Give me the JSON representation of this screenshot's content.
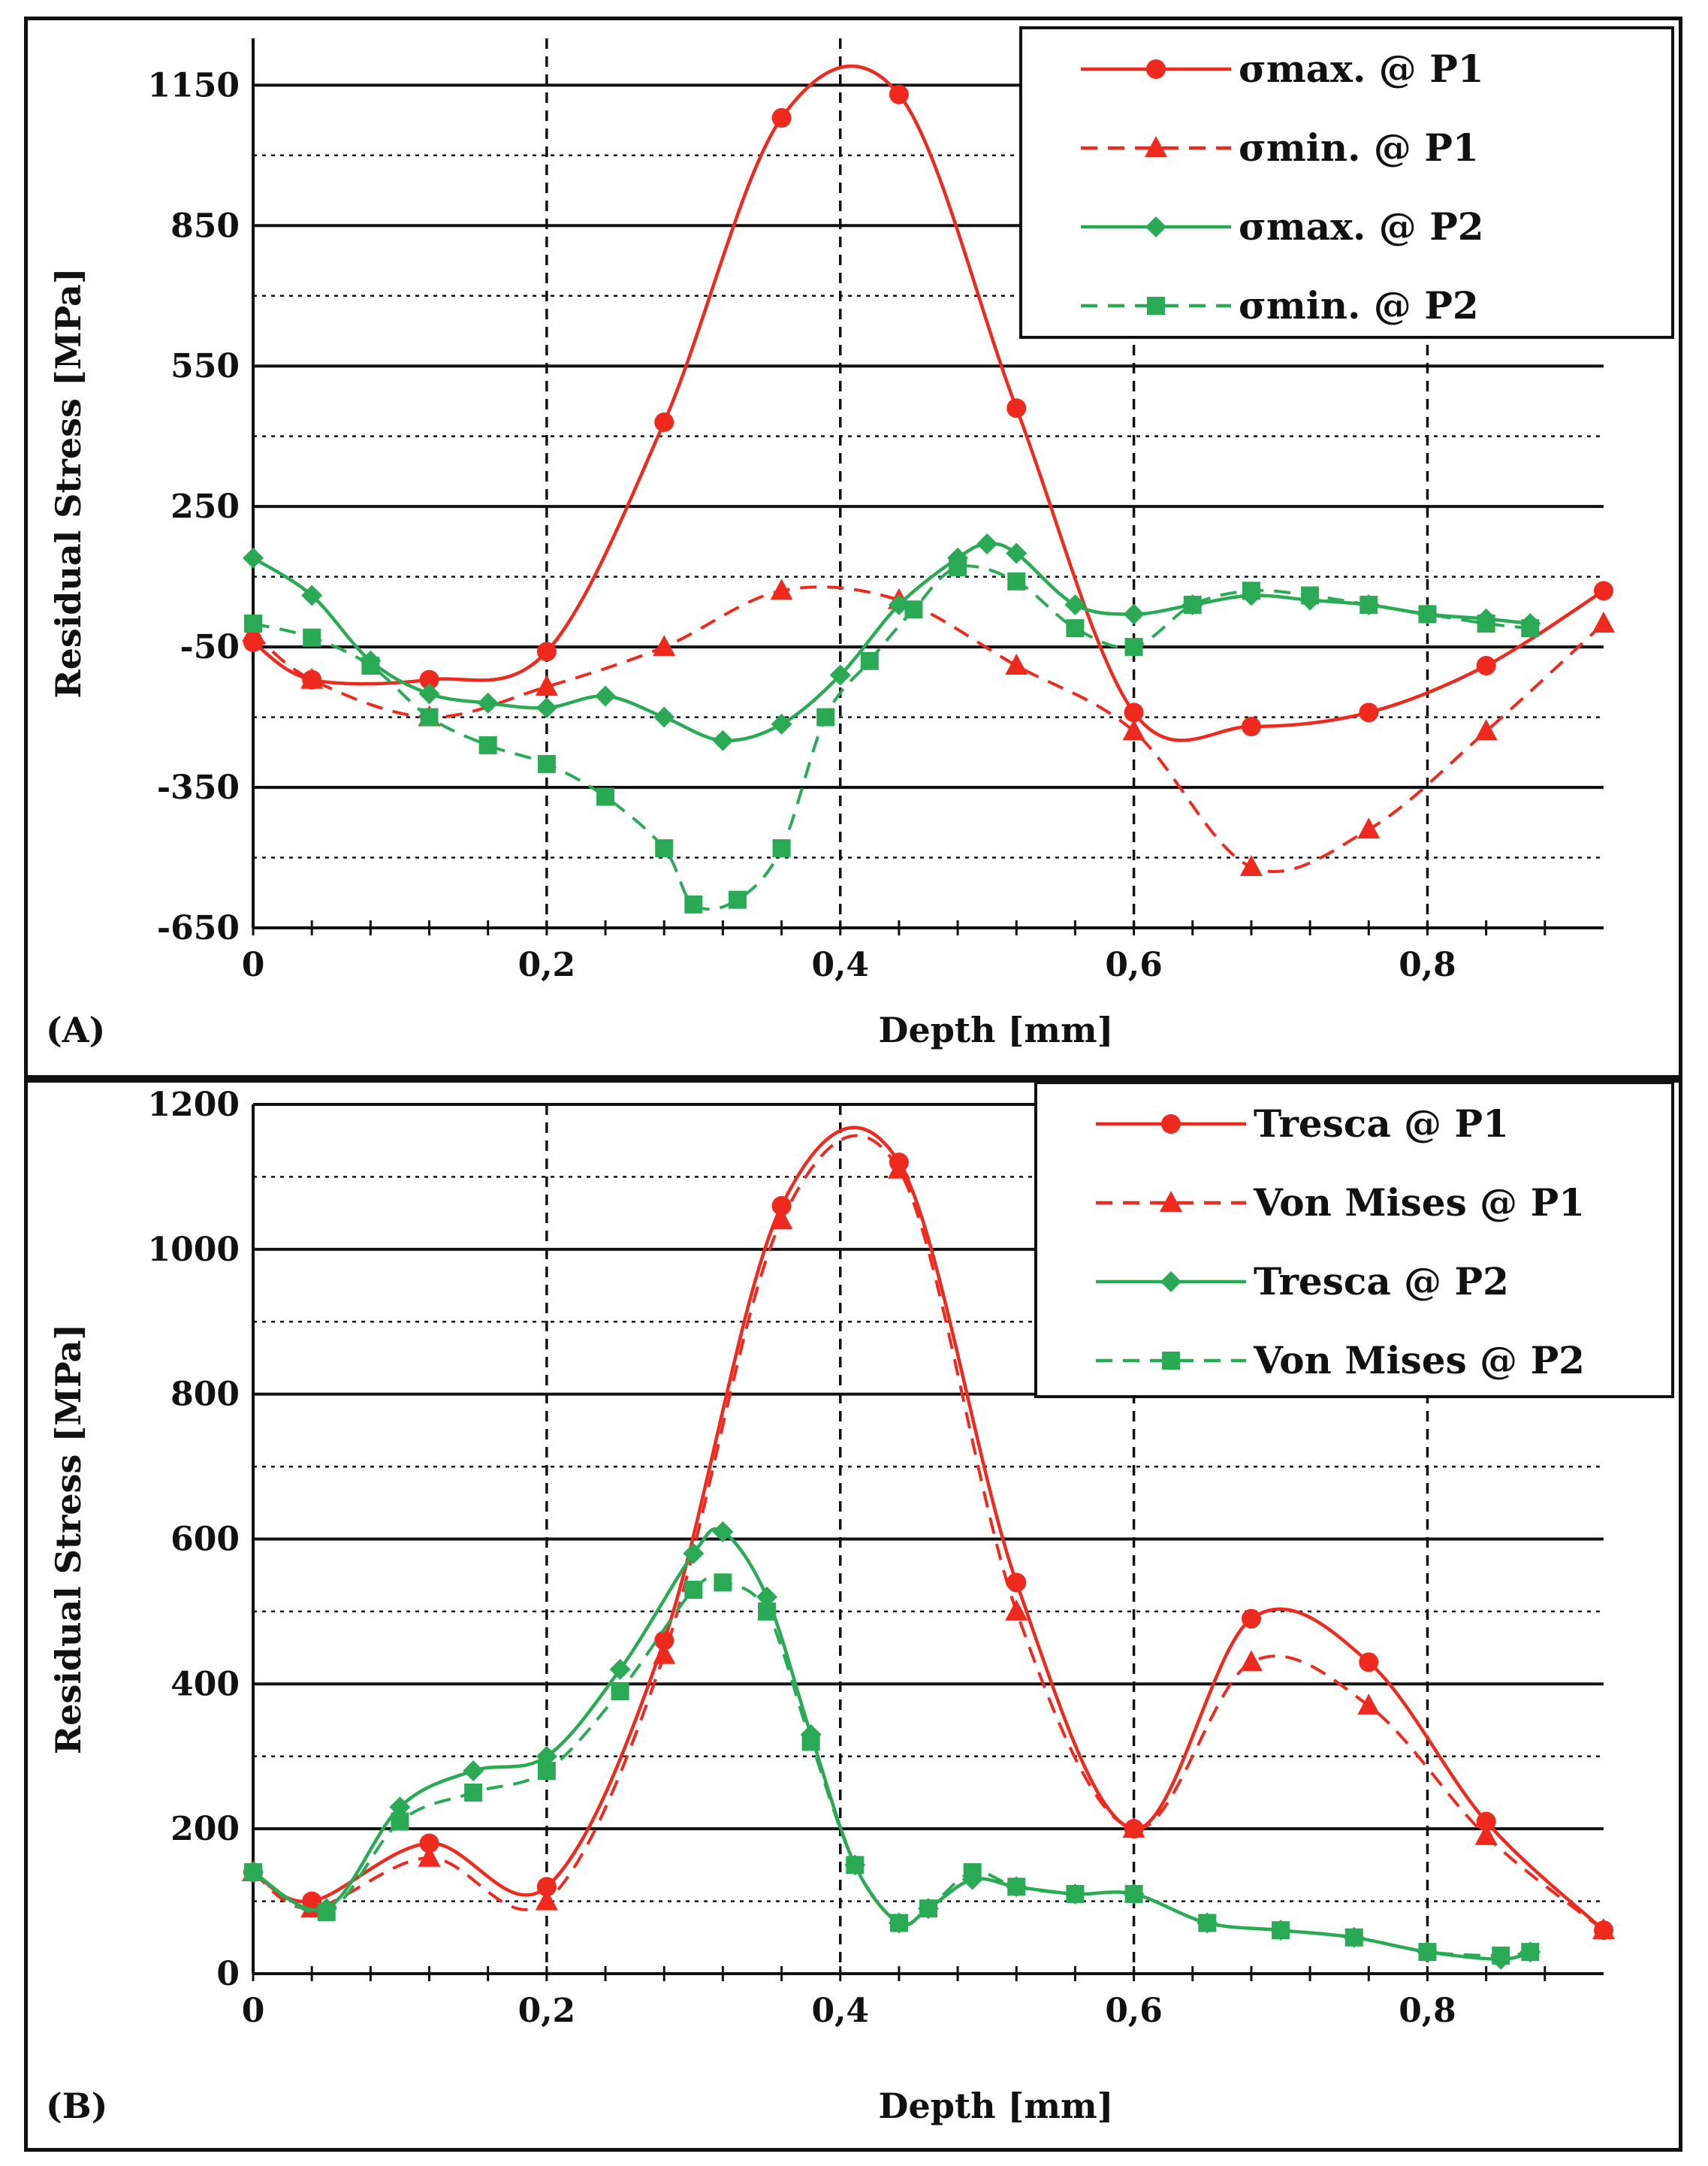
{
  "chart_data": [
    {
      "type": "line",
      "panel_label": "(A)",
      "xlabel": "Depth [mm]",
      "ylabel": "Residual Stress [MPa]",
      "xlim": [
        0,
        0.92
      ],
      "ylim": [
        -650,
        1250
      ],
      "xticks": [
        "0",
        "0,2",
        "0,4",
        "0,6",
        "0,8"
      ],
      "yticks": [
        "1150",
        "850",
        "550",
        "250",
        "-50",
        "-350",
        "-650"
      ],
      "grid": true,
      "legend_position": "top-right",
      "series": [
        {
          "name": "σmax. @ P1",
          "color": "#ee2a1e",
          "dash": "solid",
          "marker": "circle",
          "x": [
            0,
            0.04,
            0.12,
            0.2,
            0.28,
            0.36,
            0.44,
            0.52,
            0.6,
            0.68,
            0.76,
            0.84,
            0.92
          ],
          "y": [
            -40,
            -120,
            -120,
            -60,
            430,
            1080,
            1130,
            460,
            -190,
            -220,
            -190,
            -90,
            70
          ]
        },
        {
          "name": "σmin. @ P1",
          "color": "#ee2a1e",
          "dash": "dashed",
          "marker": "triangle",
          "x": [
            0,
            0.04,
            0.12,
            0.2,
            0.28,
            0.36,
            0.44,
            0.52,
            0.6,
            0.68,
            0.76,
            0.84,
            0.92
          ],
          "y": [
            -20,
            -120,
            -200,
            -135,
            -50,
            70,
            50,
            -90,
            -230,
            -520,
            -440,
            -230,
            0
          ]
        },
        {
          "name": "σmax. @ P2",
          "color": "#2aaa55",
          "dash": "solid",
          "marker": "diamond",
          "x": [
            0,
            0.04,
            0.08,
            0.12,
            0.16,
            0.2,
            0.24,
            0.28,
            0.32,
            0.36,
            0.4,
            0.44,
            0.48,
            0.5,
            0.52,
            0.56,
            0.6,
            0.64,
            0.68,
            0.72,
            0.76,
            0.8,
            0.84,
            0.87
          ],
          "y": [
            140,
            60,
            -80,
            -150,
            -170,
            -180,
            -155,
            -200,
            -250,
            -215,
            -110,
            40,
            140,
            170,
            150,
            40,
            20,
            40,
            60,
            50,
            40,
            20,
            10,
            0
          ]
        },
        {
          "name": "σmin. @ P2",
          "color": "#2aaa55",
          "dash": "dashed",
          "marker": "square",
          "x": [
            0,
            0.04,
            0.08,
            0.12,
            0.16,
            0.2,
            0.24,
            0.28,
            0.3,
            0.33,
            0.36,
            0.39,
            0.42,
            0.45,
            0.48,
            0.52,
            0.56,
            0.6,
            0.64,
            0.68,
            0.72,
            0.76,
            0.8,
            0.84,
            0.87
          ],
          "y": [
            0,
            -30,
            -90,
            -200,
            -260,
            -300,
            -370,
            -480,
            -600,
            -590,
            -480,
            -200,
            -80,
            30,
            120,
            90,
            -10,
            -50,
            40,
            70,
            60,
            40,
            20,
            0,
            -10
          ]
        }
      ]
    },
    {
      "type": "line",
      "panel_label": "(B)",
      "xlabel": "Depth [mm]",
      "ylabel": "Residual Stress [MPa]",
      "xlim": [
        0,
        0.92
      ],
      "ylim": [
        0,
        1200
      ],
      "xticks": [
        "0",
        "0,2",
        "0,4",
        "0,6",
        "0,8"
      ],
      "yticks": [
        "1200",
        "1000",
        "800",
        "600",
        "400",
        "200",
        "0"
      ],
      "grid": true,
      "legend_position": "top-right",
      "series": [
        {
          "name": "Tresca @ P1",
          "color": "#ee2a1e",
          "dash": "solid",
          "marker": "circle",
          "x": [
            0,
            0.04,
            0.12,
            0.2,
            0.28,
            0.36,
            0.44,
            0.52,
            0.6,
            0.68,
            0.76,
            0.84,
            0.92
          ],
          "y": [
            140,
            100,
            180,
            120,
            460,
            1060,
            1120,
            540,
            200,
            490,
            430,
            210,
            60
          ]
        },
        {
          "name": "Von Mises @ P1",
          "color": "#ee2a1e",
          "dash": "dashed",
          "marker": "triangle",
          "x": [
            0,
            0.04,
            0.12,
            0.2,
            0.28,
            0.36,
            0.44,
            0.52,
            0.6,
            0.68,
            0.76,
            0.84,
            0.92
          ],
          "y": [
            140,
            90,
            160,
            100,
            440,
            1040,
            1110,
            500,
            200,
            430,
            370,
            190,
            60
          ]
        },
        {
          "name": "Tresca @ P2",
          "color": "#2aaa55",
          "dash": "solid",
          "marker": "diamond",
          "x": [
            0,
            0.05,
            0.1,
            0.15,
            0.2,
            0.25,
            0.3,
            0.32,
            0.35,
            0.38,
            0.41,
            0.44,
            0.46,
            0.49,
            0.52,
            0.56,
            0.6,
            0.65,
            0.7,
            0.75,
            0.8,
            0.85,
            0.87
          ],
          "y": [
            140,
            90,
            230,
            280,
            300,
            420,
            580,
            610,
            520,
            330,
            150,
            70,
            90,
            130,
            120,
            110,
            110,
            70,
            60,
            50,
            30,
            20,
            30
          ]
        },
        {
          "name": "Von Mises @ P2",
          "color": "#2aaa55",
          "dash": "dashed",
          "marker": "square",
          "x": [
            0,
            0.05,
            0.1,
            0.15,
            0.2,
            0.25,
            0.3,
            0.32,
            0.35,
            0.38,
            0.41,
            0.44,
            0.46,
            0.49,
            0.52,
            0.56,
            0.6,
            0.65,
            0.7,
            0.75,
            0.8,
            0.85,
            0.87
          ],
          "y": [
            140,
            85,
            210,
            250,
            280,
            390,
            530,
            540,
            500,
            320,
            150,
            70,
            90,
            140,
            120,
            110,
            110,
            70,
            60,
            50,
            30,
            25,
            30
          ]
        }
      ]
    }
  ]
}
